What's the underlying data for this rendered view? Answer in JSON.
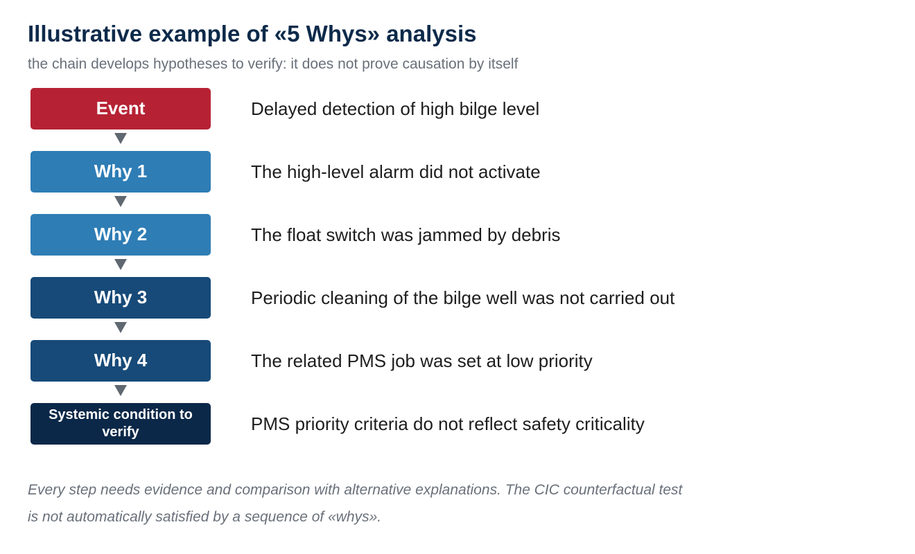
{
  "header": {
    "title": "Illustrative example of «5 Whys» analysis",
    "subtitle": "the chain develops hypotheses to verify: it does not prove causation by itself"
  },
  "chain": [
    {
      "label": "Event",
      "statement": "Delayed detection of high bilge level",
      "color": "#b62234"
    },
    {
      "label": "Why 1",
      "statement": "The high-level alarm did not activate",
      "color": "#2e7db5"
    },
    {
      "label": "Why 2",
      "statement": "The float switch was jammed by debris",
      "color": "#2e7db5"
    },
    {
      "label": "Why 3",
      "statement": "Periodic cleaning of the bilge well was not carried out",
      "color": "#174a78"
    },
    {
      "label": "Why 4",
      "statement": "The related PMS job was set at low priority",
      "color": "#174a78"
    },
    {
      "label": "Systemic condition to verify",
      "statement": "PMS priority criteria do not reflect safety criticality",
      "color": "#0c2848"
    }
  ],
  "footnote": {
    "line1": "Every step needs evidence and comparison with alternative explanations. The CIC counterfactual test",
    "line2": "is not automatically satisfied by a sequence of «whys»."
  },
  "icons": {
    "connector": "down-triangle-arrow"
  }
}
